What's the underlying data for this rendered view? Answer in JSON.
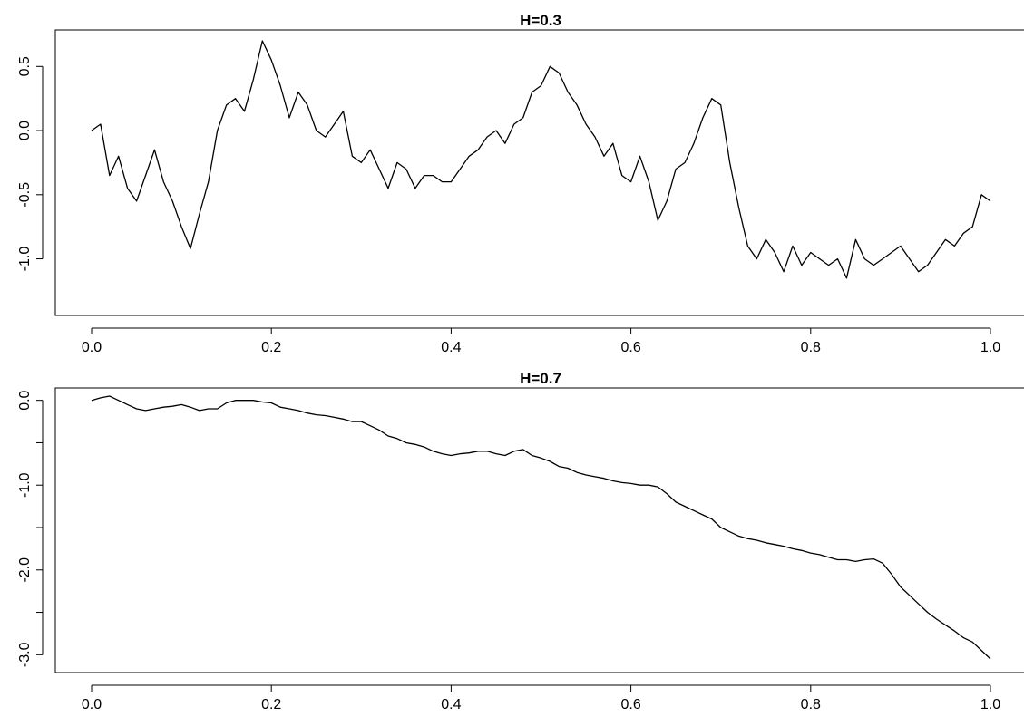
{
  "chart_data": [
    {
      "type": "line",
      "title": "H=0.3",
      "xlabel": "",
      "ylabel": "",
      "xlim": [
        0.0,
        1.0
      ],
      "ylim": [
        -1.3,
        0.7
      ],
      "xticks": [
        0.0,
        0.2,
        0.4,
        0.6,
        0.8,
        1.0
      ],
      "xtick_labels": [
        "0.0",
        "0.2",
        "0.4",
        "0.6",
        "0.8",
        "1.0"
      ],
      "yticks": [
        -1.0,
        -0.5,
        0.0,
        0.5
      ],
      "ytick_labels": [
        "-1.0",
        "-0.5",
        "0.0",
        "0.5"
      ],
      "grid": false,
      "series": [
        {
          "color": "#000000",
          "x": [
            0.0,
            0.01,
            0.02,
            0.03,
            0.04,
            0.05,
            0.06,
            0.07,
            0.08,
            0.09,
            0.1,
            0.11,
            0.12,
            0.13,
            0.14,
            0.15,
            0.16,
            0.17,
            0.18,
            0.19,
            0.2,
            0.21,
            0.22,
            0.23,
            0.24,
            0.25,
            0.26,
            0.27,
            0.28,
            0.29,
            0.3,
            0.31,
            0.32,
            0.33,
            0.34,
            0.35,
            0.36,
            0.37,
            0.38,
            0.39,
            0.4,
            0.41,
            0.42,
            0.43,
            0.44,
            0.45,
            0.46,
            0.47,
            0.48,
            0.49,
            0.5,
            0.51,
            0.52,
            0.53,
            0.54,
            0.55,
            0.56,
            0.57,
            0.58,
            0.59,
            0.6,
            0.61,
            0.62,
            0.63,
            0.64,
            0.65,
            0.66,
            0.67,
            0.68,
            0.69,
            0.7,
            0.71,
            0.72,
            0.73,
            0.74,
            0.75,
            0.76,
            0.77,
            0.78,
            0.79,
            0.8,
            0.81,
            0.82,
            0.83,
            0.84,
            0.85,
            0.86,
            0.87,
            0.88,
            0.89,
            0.9,
            0.91,
            0.92,
            0.93,
            0.94,
            0.95,
            0.96,
            0.97,
            0.98,
            0.99,
            1.0
          ],
          "y": [
            0.0,
            0.05,
            -0.35,
            -0.2,
            -0.45,
            -0.55,
            -0.35,
            -0.15,
            -0.4,
            -0.55,
            -0.75,
            -0.92,
            -0.65,
            -0.4,
            0.0,
            0.2,
            0.25,
            0.15,
            0.4,
            0.7,
            0.55,
            0.35,
            0.1,
            0.3,
            0.2,
            0.0,
            -0.05,
            0.05,
            0.15,
            -0.2,
            -0.25,
            -0.15,
            -0.3,
            -0.45,
            -0.25,
            -0.3,
            -0.45,
            -0.35,
            -0.35,
            -0.4,
            -0.4,
            -0.3,
            -0.2,
            -0.15,
            -0.05,
            0.0,
            -0.1,
            0.05,
            0.1,
            0.3,
            0.35,
            0.5,
            0.45,
            0.3,
            0.2,
            0.05,
            -0.05,
            -0.2,
            -0.1,
            -0.35,
            -0.4,
            -0.2,
            -0.4,
            -0.7,
            -0.55,
            -0.3,
            -0.25,
            -0.1,
            0.1,
            0.25,
            0.2,
            -0.25,
            -0.6,
            -0.9,
            -1.0,
            -0.85,
            -0.95,
            -1.1,
            -0.9,
            -1.05,
            -0.95,
            -1.0,
            -1.05,
            -1.0,
            -1.15,
            -0.85,
            -1.0,
            -1.05,
            -1.0,
            -0.95,
            -0.9,
            -1.0,
            -1.1,
            -1.05,
            -0.95,
            -0.85,
            -0.9,
            -0.8,
            -0.75,
            -0.5,
            -0.55
          ]
        }
      ]
    },
    {
      "type": "line",
      "title": "H=0.7",
      "xlabel": "",
      "ylabel": "",
      "xlim": [
        0.0,
        1.0
      ],
      "ylim": [
        -3.05,
        0.05
      ],
      "xticks": [
        0.0,
        0.2,
        0.4,
        0.6,
        0.8,
        1.0
      ],
      "xtick_labels": [
        "0.0",
        "0.2",
        "0.4",
        "0.6",
        "0.8",
        "1.0"
      ],
      "yticks": [
        -3.0,
        -2.5,
        -2.0,
        -1.5,
        -1.0,
        -0.5,
        0.0
      ],
      "ytick_labels": [
        "-3.0",
        "",
        "-2.0",
        "",
        "-1.0",
        "",
        "0.0"
      ],
      "grid": false,
      "series": [
        {
          "color": "#000000",
          "x": [
            0.0,
            0.01,
            0.02,
            0.03,
            0.04,
            0.05,
            0.06,
            0.07,
            0.08,
            0.09,
            0.1,
            0.11,
            0.12,
            0.13,
            0.14,
            0.15,
            0.16,
            0.17,
            0.18,
            0.19,
            0.2,
            0.21,
            0.22,
            0.23,
            0.24,
            0.25,
            0.26,
            0.27,
            0.28,
            0.29,
            0.3,
            0.31,
            0.32,
            0.33,
            0.34,
            0.35,
            0.36,
            0.37,
            0.38,
            0.39,
            0.4,
            0.41,
            0.42,
            0.43,
            0.44,
            0.45,
            0.46,
            0.47,
            0.48,
            0.49,
            0.5,
            0.51,
            0.52,
            0.53,
            0.54,
            0.55,
            0.56,
            0.57,
            0.58,
            0.59,
            0.6,
            0.61,
            0.62,
            0.63,
            0.64,
            0.65,
            0.66,
            0.67,
            0.68,
            0.69,
            0.7,
            0.71,
            0.72,
            0.73,
            0.74,
            0.75,
            0.76,
            0.77,
            0.78,
            0.79,
            0.8,
            0.81,
            0.82,
            0.83,
            0.84,
            0.85,
            0.86,
            0.87,
            0.88,
            0.89,
            0.9,
            0.91,
            0.92,
            0.93,
            0.94,
            0.95,
            0.96,
            0.97,
            0.98,
            0.99,
            1.0
          ],
          "y": [
            0.0,
            0.03,
            0.05,
            0.0,
            -0.05,
            -0.1,
            -0.12,
            -0.1,
            -0.08,
            -0.07,
            -0.05,
            -0.08,
            -0.12,
            -0.1,
            -0.1,
            -0.03,
            0.0,
            0.0,
            0.0,
            -0.02,
            -0.03,
            -0.08,
            -0.1,
            -0.12,
            -0.15,
            -0.17,
            -0.18,
            -0.2,
            -0.22,
            -0.25,
            -0.25,
            -0.3,
            -0.35,
            -0.42,
            -0.45,
            -0.5,
            -0.52,
            -0.55,
            -0.6,
            -0.63,
            -0.65,
            -0.63,
            -0.62,
            -0.6,
            -0.6,
            -0.63,
            -0.65,
            -0.6,
            -0.58,
            -0.65,
            -0.68,
            -0.72,
            -0.78,
            -0.8,
            -0.85,
            -0.88,
            -0.9,
            -0.92,
            -0.95,
            -0.97,
            -0.98,
            -1.0,
            -1.0,
            -1.02,
            -1.1,
            -1.2,
            -1.25,
            -1.3,
            -1.35,
            -1.4,
            -1.5,
            -1.55,
            -1.6,
            -1.63,
            -1.65,
            -1.68,
            -1.7,
            -1.72,
            -1.75,
            -1.77,
            -1.8,
            -1.82,
            -1.85,
            -1.88,
            -1.88,
            -1.9,
            -1.88,
            -1.87,
            -1.92,
            -2.05,
            -2.2,
            -2.3,
            -2.4,
            -2.5,
            -2.58,
            -2.65,
            -2.72,
            -2.8,
            -2.85,
            -2.95,
            -3.05
          ]
        }
      ]
    }
  ]
}
